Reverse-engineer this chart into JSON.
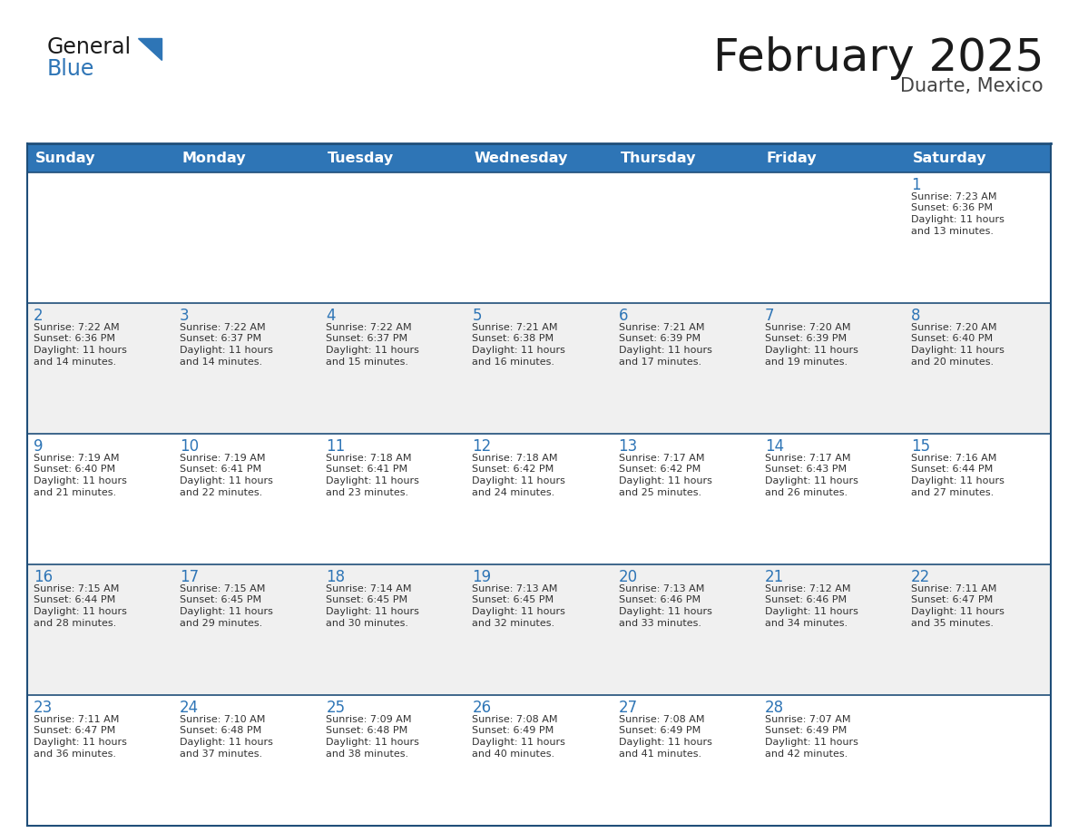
{
  "title": "February 2025",
  "subtitle": "Duarte, Mexico",
  "header_bg": "#2E75B6",
  "header_text_color": "#FFFFFF",
  "row_bg_even": "#FFFFFF",
  "row_bg_odd": "#F0F0F0",
  "grid_color": "#1F4E79",
  "title_color": "#1a1a1a",
  "subtitle_color": "#444444",
  "day_number_color": "#2E75B6",
  "cell_text_color": "#333333",
  "logo_general_color": "#1a1a1a",
  "logo_blue_color": "#2E75B6",
  "logo_triangle_color": "#2E75B6",
  "days_of_week": [
    "Sunday",
    "Monday",
    "Tuesday",
    "Wednesday",
    "Thursday",
    "Friday",
    "Saturday"
  ],
  "weeks": [
    [
      {
        "day": "",
        "info": ""
      },
      {
        "day": "",
        "info": ""
      },
      {
        "day": "",
        "info": ""
      },
      {
        "day": "",
        "info": ""
      },
      {
        "day": "",
        "info": ""
      },
      {
        "day": "",
        "info": ""
      },
      {
        "day": "1",
        "info": "Sunrise: 7:23 AM\nSunset: 6:36 PM\nDaylight: 11 hours\nand 13 minutes."
      }
    ],
    [
      {
        "day": "2",
        "info": "Sunrise: 7:22 AM\nSunset: 6:36 PM\nDaylight: 11 hours\nand 14 minutes."
      },
      {
        "day": "3",
        "info": "Sunrise: 7:22 AM\nSunset: 6:37 PM\nDaylight: 11 hours\nand 14 minutes."
      },
      {
        "day": "4",
        "info": "Sunrise: 7:22 AM\nSunset: 6:37 PM\nDaylight: 11 hours\nand 15 minutes."
      },
      {
        "day": "5",
        "info": "Sunrise: 7:21 AM\nSunset: 6:38 PM\nDaylight: 11 hours\nand 16 minutes."
      },
      {
        "day": "6",
        "info": "Sunrise: 7:21 AM\nSunset: 6:39 PM\nDaylight: 11 hours\nand 17 minutes."
      },
      {
        "day": "7",
        "info": "Sunrise: 7:20 AM\nSunset: 6:39 PM\nDaylight: 11 hours\nand 19 minutes."
      },
      {
        "day": "8",
        "info": "Sunrise: 7:20 AM\nSunset: 6:40 PM\nDaylight: 11 hours\nand 20 minutes."
      }
    ],
    [
      {
        "day": "9",
        "info": "Sunrise: 7:19 AM\nSunset: 6:40 PM\nDaylight: 11 hours\nand 21 minutes."
      },
      {
        "day": "10",
        "info": "Sunrise: 7:19 AM\nSunset: 6:41 PM\nDaylight: 11 hours\nand 22 minutes."
      },
      {
        "day": "11",
        "info": "Sunrise: 7:18 AM\nSunset: 6:41 PM\nDaylight: 11 hours\nand 23 minutes."
      },
      {
        "day": "12",
        "info": "Sunrise: 7:18 AM\nSunset: 6:42 PM\nDaylight: 11 hours\nand 24 minutes."
      },
      {
        "day": "13",
        "info": "Sunrise: 7:17 AM\nSunset: 6:42 PM\nDaylight: 11 hours\nand 25 minutes."
      },
      {
        "day": "14",
        "info": "Sunrise: 7:17 AM\nSunset: 6:43 PM\nDaylight: 11 hours\nand 26 minutes."
      },
      {
        "day": "15",
        "info": "Sunrise: 7:16 AM\nSunset: 6:44 PM\nDaylight: 11 hours\nand 27 minutes."
      }
    ],
    [
      {
        "day": "16",
        "info": "Sunrise: 7:15 AM\nSunset: 6:44 PM\nDaylight: 11 hours\nand 28 minutes."
      },
      {
        "day": "17",
        "info": "Sunrise: 7:15 AM\nSunset: 6:45 PM\nDaylight: 11 hours\nand 29 minutes."
      },
      {
        "day": "18",
        "info": "Sunrise: 7:14 AM\nSunset: 6:45 PM\nDaylight: 11 hours\nand 30 minutes."
      },
      {
        "day": "19",
        "info": "Sunrise: 7:13 AM\nSunset: 6:45 PM\nDaylight: 11 hours\nand 32 minutes."
      },
      {
        "day": "20",
        "info": "Sunrise: 7:13 AM\nSunset: 6:46 PM\nDaylight: 11 hours\nand 33 minutes."
      },
      {
        "day": "21",
        "info": "Sunrise: 7:12 AM\nSunset: 6:46 PM\nDaylight: 11 hours\nand 34 minutes."
      },
      {
        "day": "22",
        "info": "Sunrise: 7:11 AM\nSunset: 6:47 PM\nDaylight: 11 hours\nand 35 minutes."
      }
    ],
    [
      {
        "day": "23",
        "info": "Sunrise: 7:11 AM\nSunset: 6:47 PM\nDaylight: 11 hours\nand 36 minutes."
      },
      {
        "day": "24",
        "info": "Sunrise: 7:10 AM\nSunset: 6:48 PM\nDaylight: 11 hours\nand 37 minutes."
      },
      {
        "day": "25",
        "info": "Sunrise: 7:09 AM\nSunset: 6:48 PM\nDaylight: 11 hours\nand 38 minutes."
      },
      {
        "day": "26",
        "info": "Sunrise: 7:08 AM\nSunset: 6:49 PM\nDaylight: 11 hours\nand 40 minutes."
      },
      {
        "day": "27",
        "info": "Sunrise: 7:08 AM\nSunset: 6:49 PM\nDaylight: 11 hours\nand 41 minutes."
      },
      {
        "day": "28",
        "info": "Sunrise: 7:07 AM\nSunset: 6:49 PM\nDaylight: 11 hours\nand 42 minutes."
      },
      {
        "day": "",
        "info": ""
      }
    ]
  ]
}
